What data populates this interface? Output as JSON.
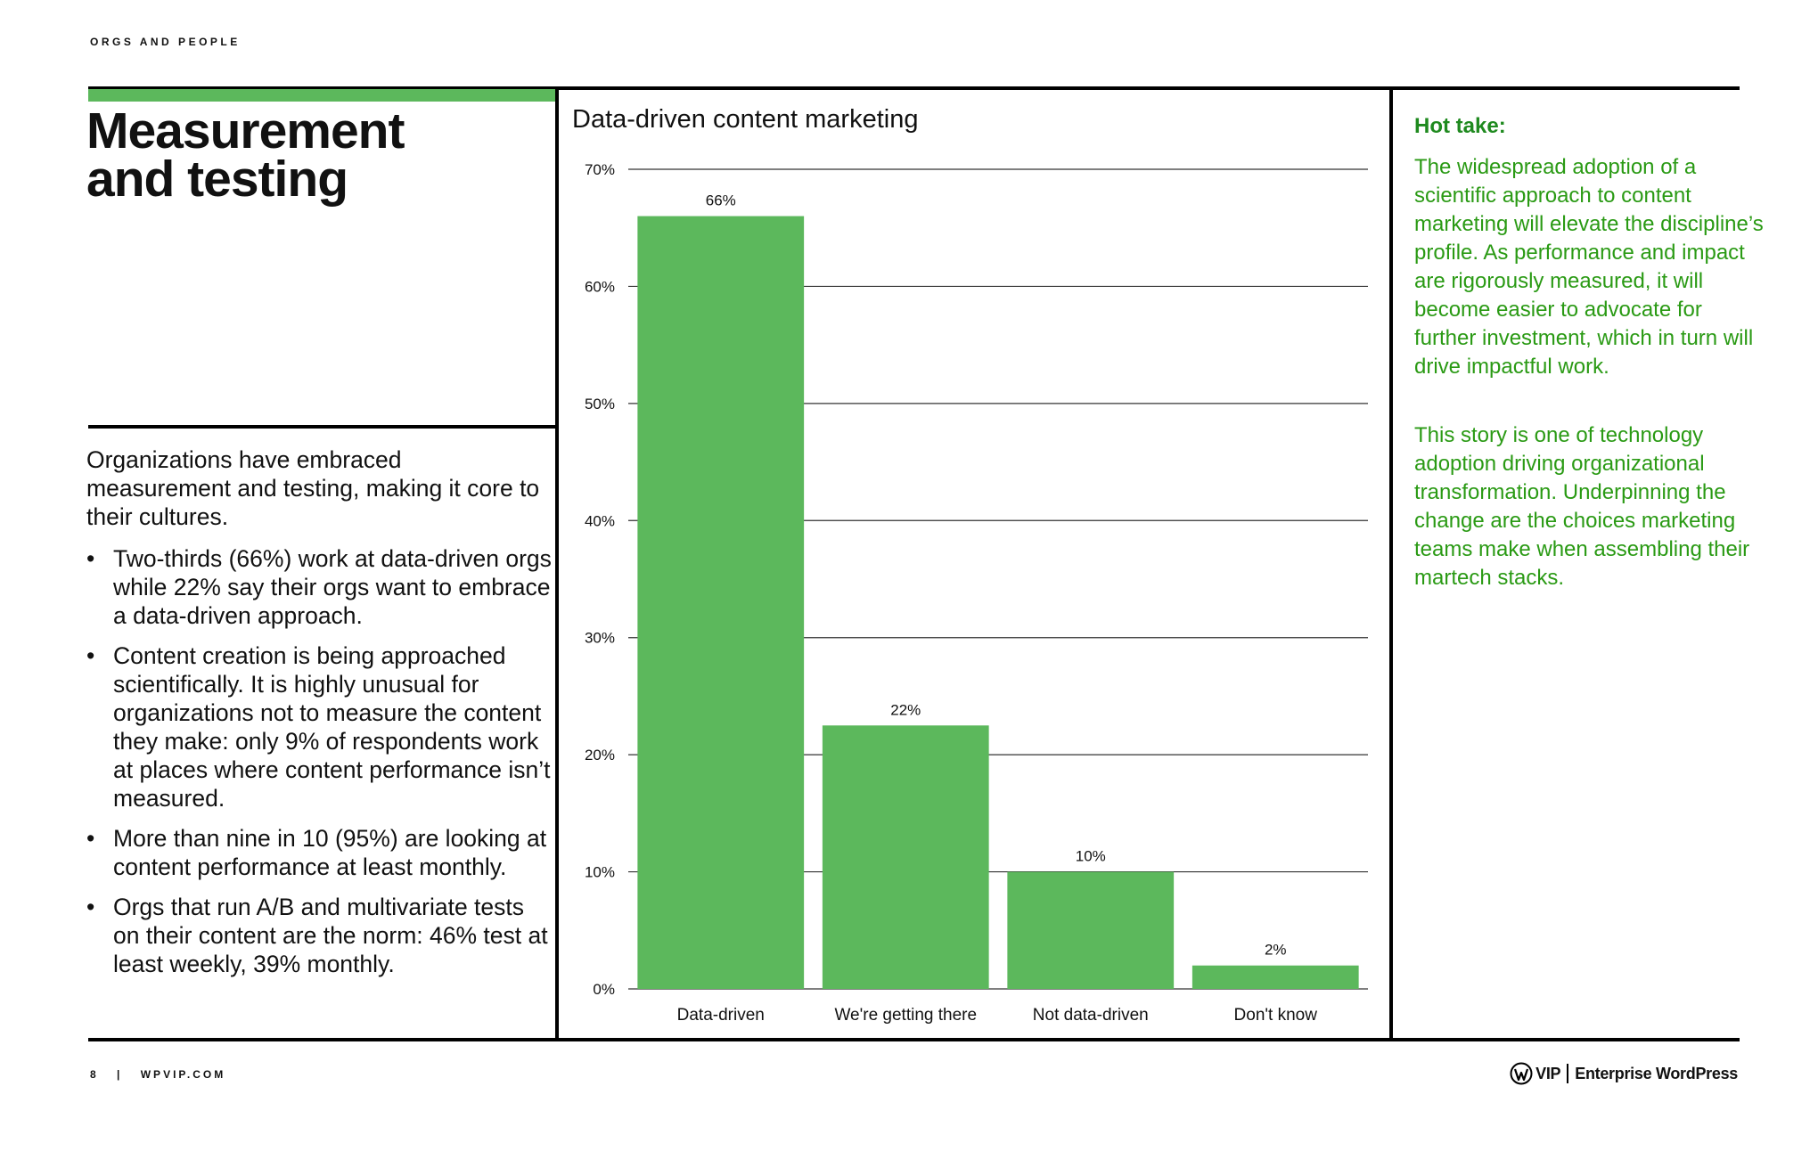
{
  "header": {
    "eyebrow": "ORGS AND PEOPLE"
  },
  "left": {
    "title_line1": "Measurement",
    "title_line2": "and testing",
    "intro": "Organizations have embraced measurement and testing, making it core to their cultures.",
    "bullets": [
      "Two-thirds (66%) work at data-driven orgs while 22% say their orgs want to embrace a data-driven approach.",
      "Content creation is being approached scientifically. It is highly unusual for organizations not to measure the content they make: only 9% of respondents work at places where content performance isn’t measured.",
      "More than nine in 10 (95%) are looking at content performance at least monthly.",
      "Orgs that run A/B and multivariate tests on their content are the norm: 46% test at least weekly, 39% monthly."
    ]
  },
  "right": {
    "heading": "Hot take:",
    "para1": "The widespread adoption of a scientific approach to content marketing will elevate the discipline’s profile. As performance and impact are rigorously measured, it will become easier to advocate for further investment, which in turn will drive impactful work.",
    "para2": "This story is one of technology adoption driving organizational transformation. Underpinning the change are the choices marketing teams make when assembling their martech stacks."
  },
  "footer": {
    "page_number": "8",
    "separator": "|",
    "site": "WPVIP.COM",
    "brand_vip": "VIP",
    "brand_name": "Enterprise WordPress"
  },
  "colors": {
    "bar": "#5cb85c",
    "accent_green": "#2a9a14",
    "heading_green": "#1f8a1f"
  },
  "chart_data": {
    "type": "bar",
    "title": "Data-driven content marketing",
    "categories": [
      "Data-driven",
      "We're getting there",
      "Not data-driven",
      "Don't know"
    ],
    "values": [
      66,
      22.5,
      10,
      2
    ],
    "value_labels": [
      "66%",
      "22%",
      "10%",
      "2%"
    ],
    "yticks": [
      0,
      10,
      20,
      30,
      40,
      50,
      60,
      70
    ],
    "ytick_labels": [
      "0%",
      "10%",
      "20%",
      "30%",
      "40%",
      "50%",
      "60%",
      "70%"
    ],
    "ylim": [
      0,
      70
    ],
    "xlabel": "",
    "ylabel": "",
    "grid": true
  }
}
